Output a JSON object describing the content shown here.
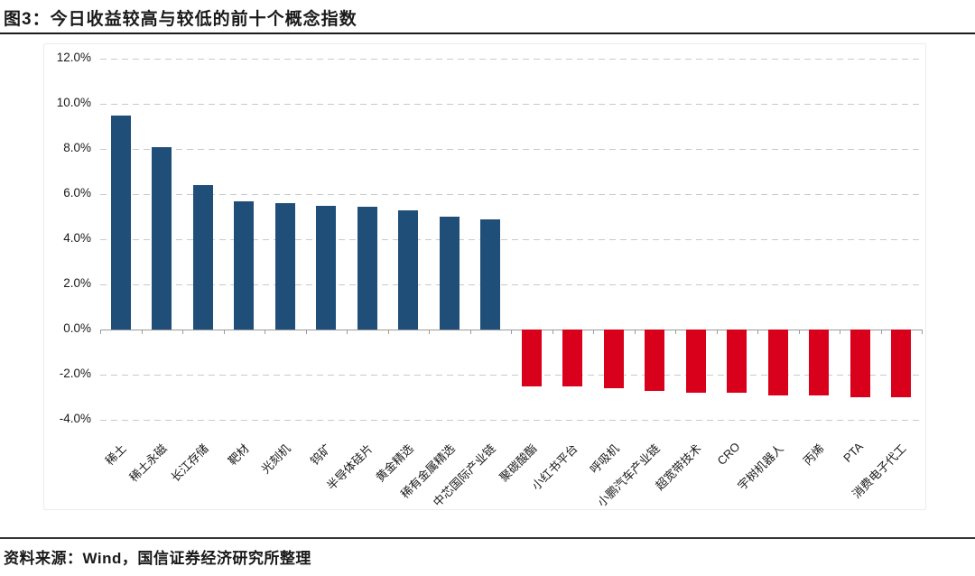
{
  "figure": {
    "title": "图3：今日收益较高与较低的前十个概念指数",
    "source": "资料来源：Wind，国信证券经济研究所整理"
  },
  "chart_data": {
    "type": "bar",
    "title": "图3：今日收益较高与较低的前十个概念指数",
    "categories": [
      "稀土",
      "稀土永磁",
      "长江存储",
      "靶材",
      "光刻机",
      "钨矿",
      "半导体硅片",
      "黄金精选",
      "稀有金属精选",
      "中芯国际产业链",
      "聚碳酸酯",
      "小红书平台",
      "呼吸机",
      "小鹏汽车产业链",
      "超宽带技术",
      "CRO",
      "宇树机器人",
      "丙烯",
      "PTA",
      "消费电子代工"
    ],
    "values": [
      9.5,
      8.1,
      6.4,
      5.7,
      5.6,
      5.5,
      5.45,
      5.3,
      5.0,
      4.9,
      -2.5,
      -2.5,
      -2.6,
      -2.7,
      -2.8,
      -2.8,
      -2.9,
      -2.9,
      -3.0,
      -3.0
    ],
    "unit": "%",
    "xlabel": "",
    "ylabel": "",
    "ylim": [
      -4,
      12
    ],
    "yticks": [
      12,
      10,
      8,
      6,
      4,
      2,
      0,
      -2,
      -4
    ],
    "ytick_labels": [
      "12.0%",
      "10.0%",
      "8.0%",
      "6.0%",
      "4.0%",
      "2.0%",
      "0.0%",
      "-2.0%",
      "-4.0%"
    ],
    "positive_color": "#1f4e79",
    "negative_color": "#d9001b",
    "gridline_color": "#c9c9c9",
    "axis_color": "#9b9b9b",
    "grid": "horizontal-dashed",
    "legend": "none"
  }
}
